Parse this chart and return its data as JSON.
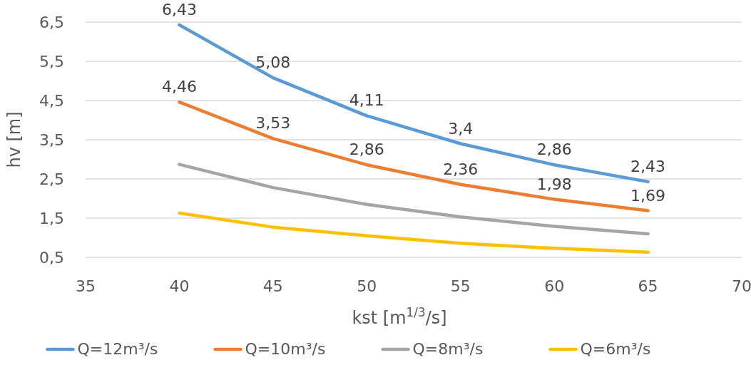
{
  "chart_data": {
    "type": "line",
    "xlabel": "kst [m$^{1/3}$/s]",
    "ylabel": "hv [m]",
    "x": [
      40,
      45,
      50,
      55,
      60,
      65
    ],
    "series": [
      {
        "name": "Q=12m³/s",
        "color": "#5b9bd5",
        "values": [
          6.43,
          5.08,
          4.11,
          3.4,
          2.86,
          2.43
        ],
        "value_labels": [
          "6,43",
          "5,08",
          "4,11",
          "3,4",
          "2,86",
          "2,43"
        ]
      },
      {
        "name": "Q=10m³/s",
        "color": "#ed7d31",
        "values": [
          4.46,
          3.53,
          2.86,
          2.36,
          1.98,
          1.69
        ],
        "value_labels": [
          "4,46",
          "3,53",
          "2,86",
          "2,36",
          "1,98",
          "1,69"
        ]
      },
      {
        "name": "Q=8m³/s",
        "color": "#a5a5a5",
        "values": [
          2.87,
          2.28,
          1.85,
          1.53,
          1.29,
          1.1
        ]
      },
      {
        "name": "Q=6m³/s",
        "color": "#ffc000",
        "values": [
          1.63,
          1.27,
          1.05,
          0.86,
          0.73,
          0.63
        ]
      }
    ],
    "xlim": [
      35,
      70
    ],
    "xticks": [
      35,
      40,
      45,
      50,
      55,
      60,
      65,
      70
    ],
    "ylim": [
      0.5,
      6.5
    ],
    "yticks": [
      {
        "value": 0.5,
        "label": "0,5"
      },
      {
        "value": 1.5,
        "label": "1,5"
      },
      {
        "value": 2.5,
        "label": "2,5"
      },
      {
        "value": 3.5,
        "label": "3,5"
      },
      {
        "value": 4.5,
        "label": "4,5"
      },
      {
        "value": 5.5,
        "label": "5,5"
      },
      {
        "value": 6.5,
        "label": "6,5"
      }
    ],
    "grid": "y",
    "legend": "bottom",
    "marker": "none",
    "line_style": "solid"
  }
}
